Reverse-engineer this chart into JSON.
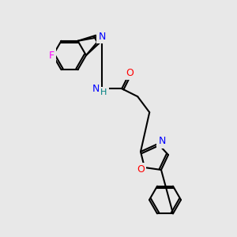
{
  "background_color": "#e8e8e8",
  "bond_color": "#000000",
  "bond_width": 1.5,
  "atom_colors": {
    "N": "#0000ff",
    "O": "#ff0000",
    "F": "#ff00ff",
    "H": "#008080",
    "C": "#000000"
  },
  "font_size": 8,
  "fig_size": [
    3.0,
    3.0
  ],
  "dpi": 100
}
